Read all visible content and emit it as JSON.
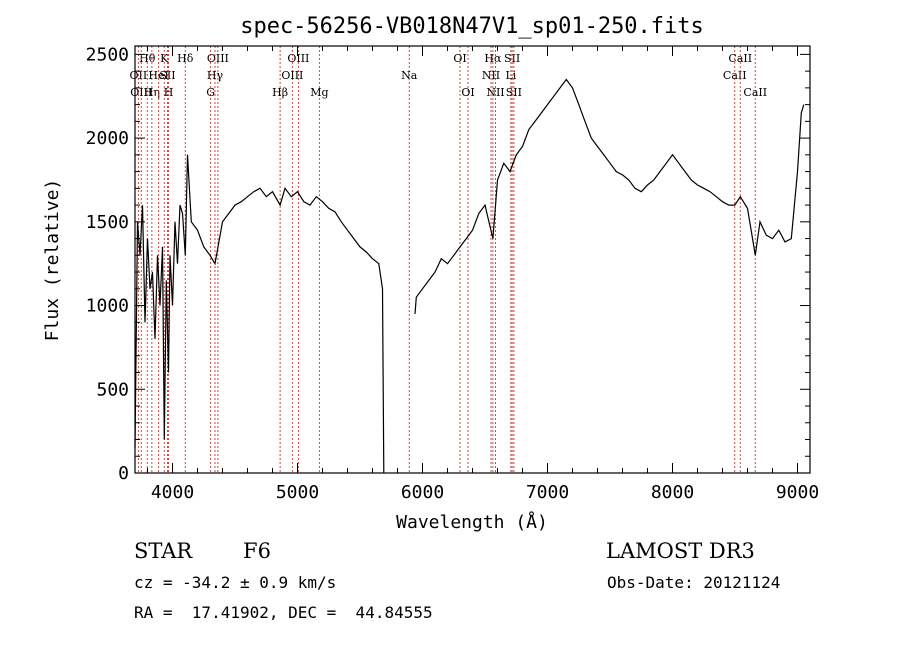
{
  "chart_data": {
    "type": "line",
    "title": "spec-56256-VB018N47V1_sp01-250.fits",
    "xlabel": "Wavelength (Å)",
    "ylabel": "Flux (relative)",
    "xlim": [
      3700,
      9100
    ],
    "ylim": [
      0,
      2550
    ],
    "xticks": [
      4000,
      5000,
      6000,
      7000,
      8000,
      9000
    ],
    "yticks": [
      0,
      500,
      1000,
      1500,
      2000,
      2500
    ],
    "grid": false,
    "series": [
      {
        "x": [
          3700,
          3720,
          3740,
          3760,
          3780,
          3800,
          3820,
          3840,
          3860,
          3880,
          3900,
          3920,
          3934,
          3950,
          3968,
          3980,
          4000,
          4020,
          4040,
          4060,
          4080,
          4102,
          4120,
          4150,
          4200,
          4250,
          4300,
          4340,
          4400,
          4450,
          4500,
          4550,
          4600,
          4650,
          4700,
          4750,
          4800,
          4861,
          4900,
          4950,
          5000,
          5050,
          5100,
          5150,
          5200,
          5250,
          5300,
          5350,
          5400,
          5450,
          5500,
          5550,
          5600,
          5650,
          5680,
          5690,
          5700,
          5930,
          5940,
          5950,
          6000,
          6050,
          6100,
          6150,
          6200,
          6250,
          6300,
          6350,
          6400,
          6450,
          6500,
          6563,
          6600,
          6650,
          6700,
          6750,
          6800,
          6850,
          6900,
          6950,
          7000,
          7050,
          7100,
          7150,
          7200,
          7250,
          7300,
          7350,
          7400,
          7450,
          7500,
          7550,
          7600,
          7650,
          7700,
          7750,
          7800,
          7850,
          7900,
          7950,
          8000,
          8050,
          8100,
          8150,
          8200,
          8250,
          8300,
          8350,
          8400,
          8450,
          8498,
          8542,
          8600,
          8662,
          8700,
          8750,
          8800,
          8850,
          8900,
          8950,
          9000,
          9030,
          9050
        ],
        "values": [
          150,
          1500,
          1300,
          1600,
          900,
          1400,
          1100,
          1200,
          800,
          1300,
          1000,
          1350,
          200,
          1150,
          600,
          1300,
          1000,
          1500,
          1250,
          1600,
          1550,
          1300,
          1900,
          1500,
          1450,
          1350,
          1300,
          1250,
          1500,
          1550,
          1600,
          1620,
          1650,
          1680,
          1700,
          1650,
          1680,
          1600,
          1700,
          1650,
          1680,
          1620,
          1600,
          1650,
          1620,
          1580,
          1560,
          1500,
          1450,
          1400,
          1350,
          1320,
          1280,
          1250,
          1100,
          0,
          null,
          null,
          950,
          1050,
          1100,
          1150,
          1200,
          1280,
          1250,
          1300,
          1350,
          1400,
          1450,
          1550,
          1600,
          1400,
          1750,
          1850,
          1800,
          1900,
          1950,
          2050,
          2100,
          2150,
          2200,
          2250,
          2300,
          2350,
          2300,
          2200,
          2100,
          2000,
          1950,
          1900,
          1850,
          1800,
          1780,
          1750,
          1700,
          1680,
          1720,
          1750,
          1800,
          1850,
          1900,
          1850,
          1800,
          1750,
          1720,
          1700,
          1680,
          1650,
          1620,
          1600,
          1600,
          1650,
          1580,
          1300,
          1500,
          1420,
          1400,
          1450,
          1380,
          1400,
          1800,
          2150,
          2200
        ]
      }
    ],
    "lines": [
      {
        "name": "Hθ",
        "x": 3798,
        "row": 1
      },
      {
        "name": "OII",
        "x": 3727,
        "row": 2
      },
      {
        "name": "OIII",
        "x": 3750,
        "row": 3
      },
      {
        "name": "Hη",
        "x": 3835,
        "row": 3
      },
      {
        "name": "HeI",
        "x": 3889,
        "row": 2
      },
      {
        "name": "K",
        "x": 3934,
        "row": 1
      },
      {
        "name": "SII",
        "x": 3960,
        "row": 2
      },
      {
        "name": "H",
        "x": 3968,
        "row": 3
      },
      {
        "name": "Hδ",
        "x": 4102,
        "row": 1
      },
      {
        "name": "OIII",
        "x": 4363,
        "row": 1
      },
      {
        "name": "Hγ",
        "x": 4340,
        "row": 2
      },
      {
        "name": "G",
        "x": 4305,
        "row": 3
      },
      {
        "name": "Hβ",
        "x": 4861,
        "row": 3
      },
      {
        "name": "OIII",
        "x": 5007,
        "row": 1
      },
      {
        "name": "OIII",
        "x": 4959,
        "row": 2
      },
      {
        "name": "Mg",
        "x": 5175,
        "row": 3
      },
      {
        "name": "Na",
        "x": 5894,
        "row": 2
      },
      {
        "name": "OI",
        "x": 6300,
        "row": 1
      },
      {
        "name": "OI",
        "x": 6364,
        "row": 3
      },
      {
        "name": "Hα",
        "x": 6563,
        "row": 1
      },
      {
        "name": "NII",
        "x": 6548,
        "row": 2
      },
      {
        "name": "NII",
        "x": 6584,
        "row": 3
      },
      {
        "name": "SII",
        "x": 6717,
        "row": 1
      },
      {
        "name": "Li",
        "x": 6707,
        "row": 2
      },
      {
        "name": "SII",
        "x": 6731,
        "row": 3
      },
      {
        "name": "CaII",
        "x": 8498,
        "row": 2
      },
      {
        "name": "CaII",
        "x": 8542,
        "row": 1
      },
      {
        "name": "CaII",
        "x": 8662,
        "row": 3
      }
    ]
  },
  "info": {
    "class": "STAR",
    "subclass": "F6",
    "survey": "LAMOST DR3",
    "cz": "cz = -34.2 ± 0.9 km/s",
    "obsdate": "Obs-Date: 20121124",
    "radec": "RA =  17.41902, DEC =  44.84555"
  }
}
